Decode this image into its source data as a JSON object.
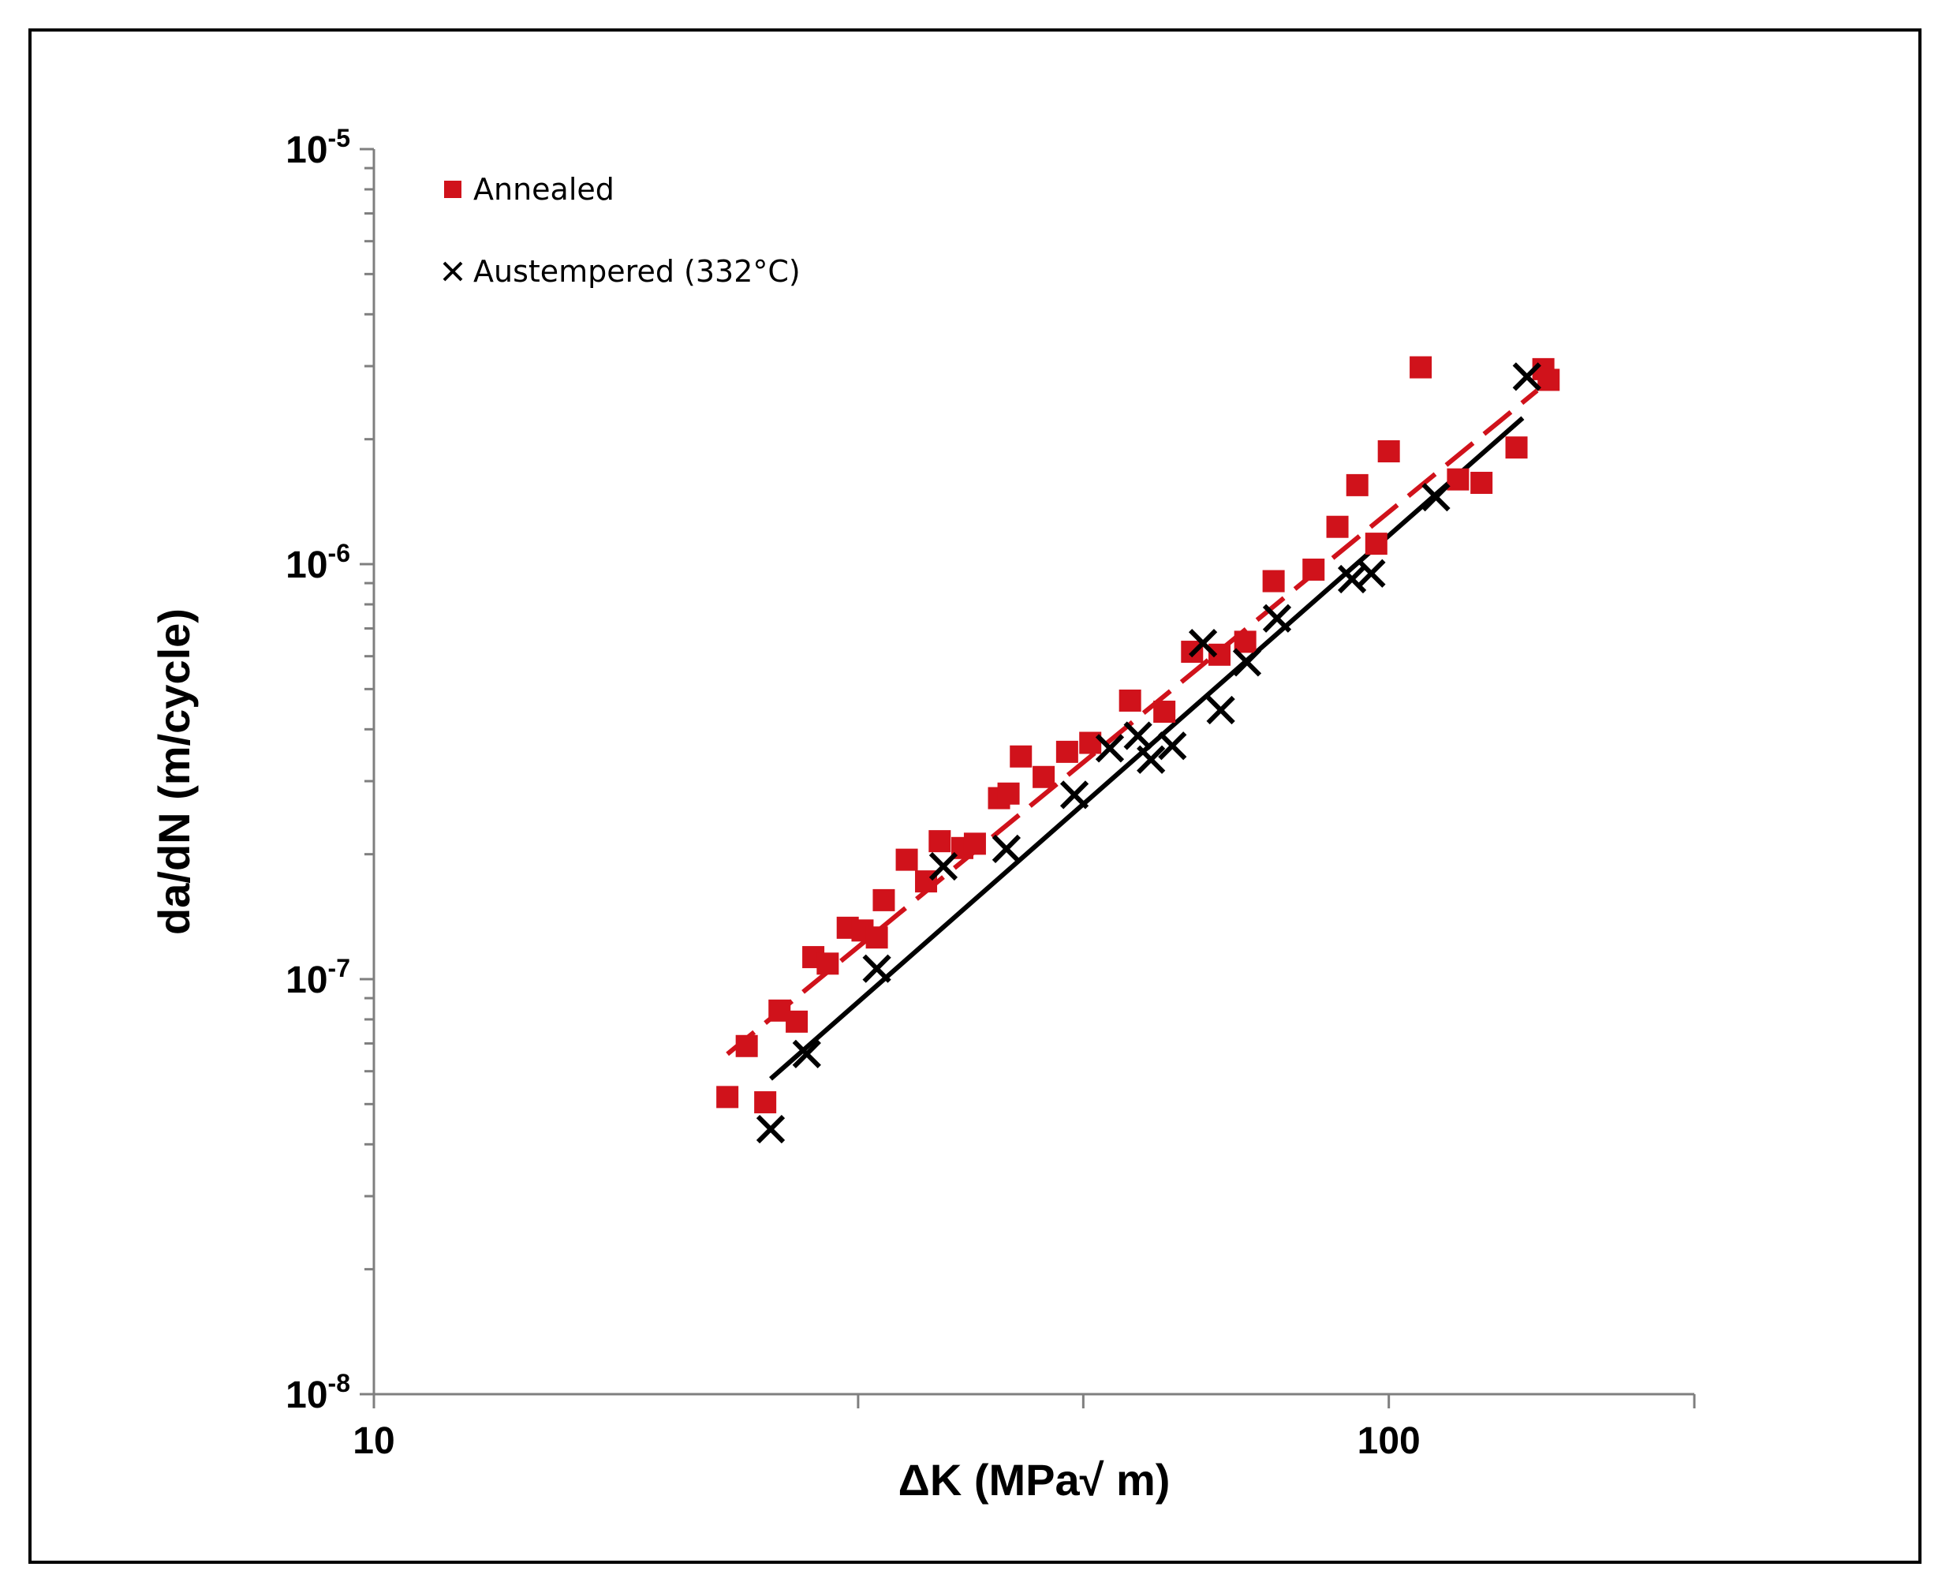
{
  "chart_data": {
    "type": "scatter",
    "xlabel": "ΔK (MPa√ m)",
    "ylabel": "da/dN (m/cycle)",
    "x_scale": "log",
    "y_scale": "log",
    "xlim": [
      10,
      200
    ],
    "ylim": [
      1e-08,
      1e-05
    ],
    "x_ticks": [
      {
        "value": 10,
        "label": "10"
      },
      {
        "value": 100,
        "label": "100"
      }
    ],
    "y_ticks": [
      {
        "value": 1e-05,
        "base": "10",
        "exp": "-5"
      },
      {
        "value": 1e-06,
        "base": "10",
        "exp": "-6"
      },
      {
        "value": 1e-07,
        "base": "10",
        "exp": "-7"
      },
      {
        "value": 1e-08,
        "base": "10",
        "exp": "-8"
      }
    ],
    "grid": false,
    "legend_position": "top-left",
    "series": [
      {
        "name": "Annealed",
        "marker": "square",
        "color": "#d0121b",
        "points": [
          [
            22.3,
            5.2e-08
          ],
          [
            23.3,
            6.9e-08
          ],
          [
            24.3,
            5.05e-08
          ],
          [
            25.1,
            8.4e-08
          ],
          [
            26.1,
            7.9e-08
          ],
          [
            27.1,
            1.13e-07
          ],
          [
            28.0,
            1.09e-07
          ],
          [
            29.3,
            1.33e-07
          ],
          [
            30.3,
            1.31e-07
          ],
          [
            31.3,
            1.26e-07
          ],
          [
            31.8,
            1.55e-07
          ],
          [
            33.5,
            1.94e-07
          ],
          [
            35.0,
            1.72e-07
          ],
          [
            36.1,
            2.15e-07
          ],
          [
            38.0,
            2.07e-07
          ],
          [
            39.1,
            2.12e-07
          ],
          [
            41.3,
            2.73e-07
          ],
          [
            42.2,
            2.8e-07
          ],
          [
            43.4,
            3.44e-07
          ],
          [
            45.7,
            3.07e-07
          ],
          [
            48.2,
            3.53e-07
          ],
          [
            50.8,
            3.71e-07
          ],
          [
            55.6,
            4.69e-07
          ],
          [
            60.1,
            4.41e-07
          ],
          [
            64.0,
            6.15e-07
          ],
          [
            68.1,
            6.05e-07
          ],
          [
            72.2,
            6.5e-07
          ],
          [
            77.0,
            9.1e-07
          ],
          [
            84.3,
            9.7e-07
          ],
          [
            89.0,
            1.23e-06
          ],
          [
            93.1,
            1.55e-06
          ],
          [
            97.2,
            1.12e-06
          ],
          [
            100.0,
            1.87e-06
          ],
          [
            107.5,
            2.98e-06
          ],
          [
            117.0,
            1.6e-06
          ],
          [
            123.4,
            1.57e-06
          ],
          [
            133.6,
            1.91e-06
          ],
          [
            142.0,
            2.95e-06
          ],
          [
            143.7,
            2.78e-06
          ]
        ],
        "trend": {
          "style": "dashed",
          "from": [
            22.3,
            6.6e-08
          ],
          "to": [
            140.0,
            2.62e-06
          ]
        }
      },
      {
        "name": "Austempered (332°C)",
        "marker": "x",
        "color": "#000000",
        "points": [
          [
            24.6,
            4.35e-08
          ],
          [
            26.7,
            6.6e-08
          ],
          [
            31.3,
            1.06e-07
          ],
          [
            36.4,
            1.87e-07
          ],
          [
            42.0,
            2.06e-07
          ],
          [
            49.0,
            2.78e-07
          ],
          [
            53.1,
            3.6e-07
          ],
          [
            56.6,
            3.86e-07
          ],
          [
            58.3,
            3.38e-07
          ],
          [
            61.2,
            3.65e-07
          ],
          [
            65.6,
            6.45e-07
          ],
          [
            68.3,
            4.45e-07
          ],
          [
            72.5,
            5.8e-07
          ],
          [
            77.6,
            7.4e-07
          ],
          [
            92.0,
            9.2e-07
          ],
          [
            96.1,
            9.5e-07
          ],
          [
            111.3,
            1.45e-06
          ],
          [
            136.8,
            2.83e-06
          ]
        ],
        "trend": {
          "style": "solid",
          "from": [
            24.6,
            5.75e-08
          ],
          "to": [
            135.5,
            2.25e-06
          ]
        }
      }
    ]
  }
}
